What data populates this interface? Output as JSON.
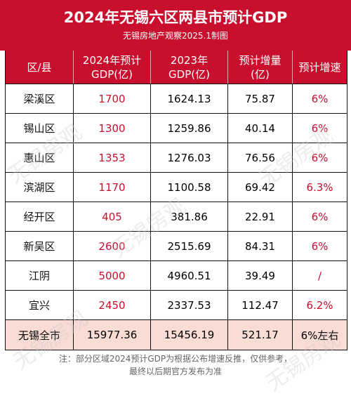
{
  "header": {
    "title": "2024年无锡六区两县市预计GDP",
    "subtitle": "无锡房地产观察2025.1制图"
  },
  "table": {
    "columns": [
      "区/县",
      "2024年预计\nGDP(亿)",
      "2023年\nGDP(亿)",
      "预计增量\n(亿)",
      "预计增速"
    ],
    "rows": [
      {
        "district": "梁溪区",
        "gdp2024": "1700",
        "gdp2023": "1624.13",
        "increase": "75.87",
        "growth": "6%"
      },
      {
        "district": "锡山区",
        "gdp2024": "1300",
        "gdp2023": "1259.86",
        "increase": "40.14",
        "growth": "6%"
      },
      {
        "district": "惠山区",
        "gdp2024": "1353",
        "gdp2023": "1276.03",
        "increase": "76.56",
        "growth": "6%"
      },
      {
        "district": "滨湖区",
        "gdp2024": "1170",
        "gdp2023": "1100.58",
        "increase": "69.42",
        "growth": "6.3%"
      },
      {
        "district": "经开区",
        "gdp2024": "405",
        "gdp2023": "381.86",
        "increase": "22.91",
        "growth": "6%"
      },
      {
        "district": "新吴区",
        "gdp2024": "2600",
        "gdp2023": "2515.69",
        "increase": "84.31",
        "growth": "6%"
      },
      {
        "district": "江阴",
        "gdp2024": "5000",
        "gdp2023": "4960.51",
        "increase": "39.49",
        "growth": "/"
      },
      {
        "district": "宜兴",
        "gdp2024": "2450",
        "gdp2023": "2337.53",
        "increase": "112.47",
        "growth": "6.2%"
      }
    ],
    "total": {
      "district": "无锡全市",
      "gdp2024": "15977.36",
      "gdp2023": "15456.19",
      "increase": "521.17",
      "growth": "6%左右"
    }
  },
  "note": {
    "line1": "注：部分区域2024预计GDP为根据公布增速反推，仅供参考，",
    "line2": "最终以后期官方发布为准"
  },
  "watermark": "无锡房观",
  "colors": {
    "accent": "#c8102e",
    "total_bg": "#f9dcd4"
  }
}
